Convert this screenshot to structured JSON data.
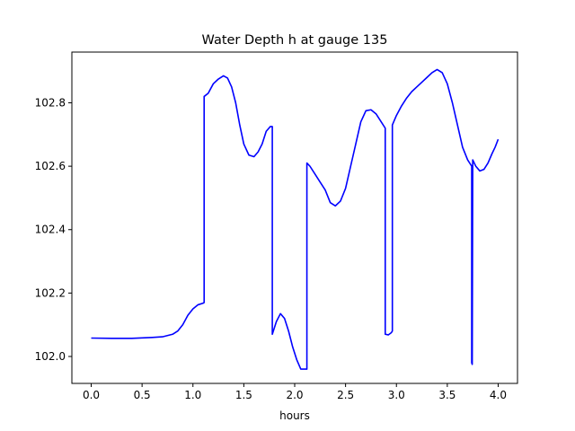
{
  "chart_data": {
    "type": "line",
    "title": "Water Depth h at gauge 135",
    "xlabel": "hours",
    "ylabel": "",
    "xlim": [
      -0.19,
      4.19
    ],
    "ylim": [
      101.915,
      102.96
    ],
    "xticks": [
      0.0,
      0.5,
      1.0,
      1.5,
      2.0,
      2.5,
      3.0,
      3.5,
      4.0
    ],
    "xtick_labels": [
      "0.0",
      "0.5",
      "1.0",
      "1.5",
      "2.0",
      "2.5",
      "3.0",
      "3.5",
      "4.0"
    ],
    "yticks": [
      102.0,
      102.2,
      102.4,
      102.6,
      102.8
    ],
    "ytick_labels": [
      "102.0",
      "102.2",
      "102.4",
      "102.6",
      "102.8"
    ],
    "grid": false,
    "series": [
      {
        "color": "#0000ff",
        "x": [
          0.0,
          0.2,
          0.4,
          0.6,
          0.7,
          0.8,
          0.85,
          0.9,
          0.95,
          1.0,
          1.05,
          1.1,
          1.11,
          1.11,
          1.15,
          1.2,
          1.25,
          1.3,
          1.34,
          1.38,
          1.42,
          1.46,
          1.5,
          1.55,
          1.6,
          1.64,
          1.68,
          1.72,
          1.76,
          1.78,
          1.78,
          1.82,
          1.86,
          1.9,
          1.94,
          1.98,
          2.02,
          2.06,
          2.1,
          2.12,
          2.12,
          2.15,
          2.2,
          2.25,
          2.3,
          2.35,
          2.4,
          2.45,
          2.5,
          2.55,
          2.6,
          2.65,
          2.7,
          2.75,
          2.8,
          2.85,
          2.89,
          2.89,
          2.92,
          2.95,
          2.96,
          2.96,
          3.0,
          3.05,
          3.1,
          3.15,
          3.2,
          3.25,
          3.3,
          3.35,
          3.4,
          3.45,
          3.5,
          3.55,
          3.6,
          3.65,
          3.7,
          3.74,
          3.74,
          3.745,
          3.75,
          3.75,
          3.78,
          3.82,
          3.86,
          3.9,
          3.94,
          3.97,
          4.0
        ],
        "y": [
          102.058,
          102.057,
          102.057,
          102.06,
          102.062,
          102.07,
          102.08,
          102.1,
          102.13,
          102.15,
          102.163,
          102.168,
          102.17,
          102.82,
          102.83,
          102.86,
          102.875,
          102.885,
          102.878,
          102.85,
          102.8,
          102.73,
          102.67,
          102.635,
          102.63,
          102.645,
          102.67,
          102.71,
          102.725,
          102.725,
          102.07,
          102.11,
          102.135,
          102.12,
          102.08,
          102.03,
          101.99,
          101.96,
          101.96,
          101.96,
          102.61,
          102.6,
          102.575,
          102.55,
          102.525,
          102.485,
          102.475,
          102.49,
          102.53,
          102.6,
          102.67,
          102.74,
          102.775,
          102.778,
          102.765,
          102.74,
          102.72,
          102.07,
          102.068,
          102.075,
          102.08,
          102.73,
          102.76,
          102.79,
          102.815,
          102.835,
          102.85,
          102.865,
          102.88,
          102.895,
          102.905,
          102.895,
          102.86,
          102.8,
          102.73,
          102.66,
          102.62,
          102.6,
          101.98,
          101.975,
          102.62,
          102.62,
          102.6,
          102.585,
          102.59,
          102.61,
          102.64,
          102.66,
          102.685
        ]
      }
    ]
  }
}
